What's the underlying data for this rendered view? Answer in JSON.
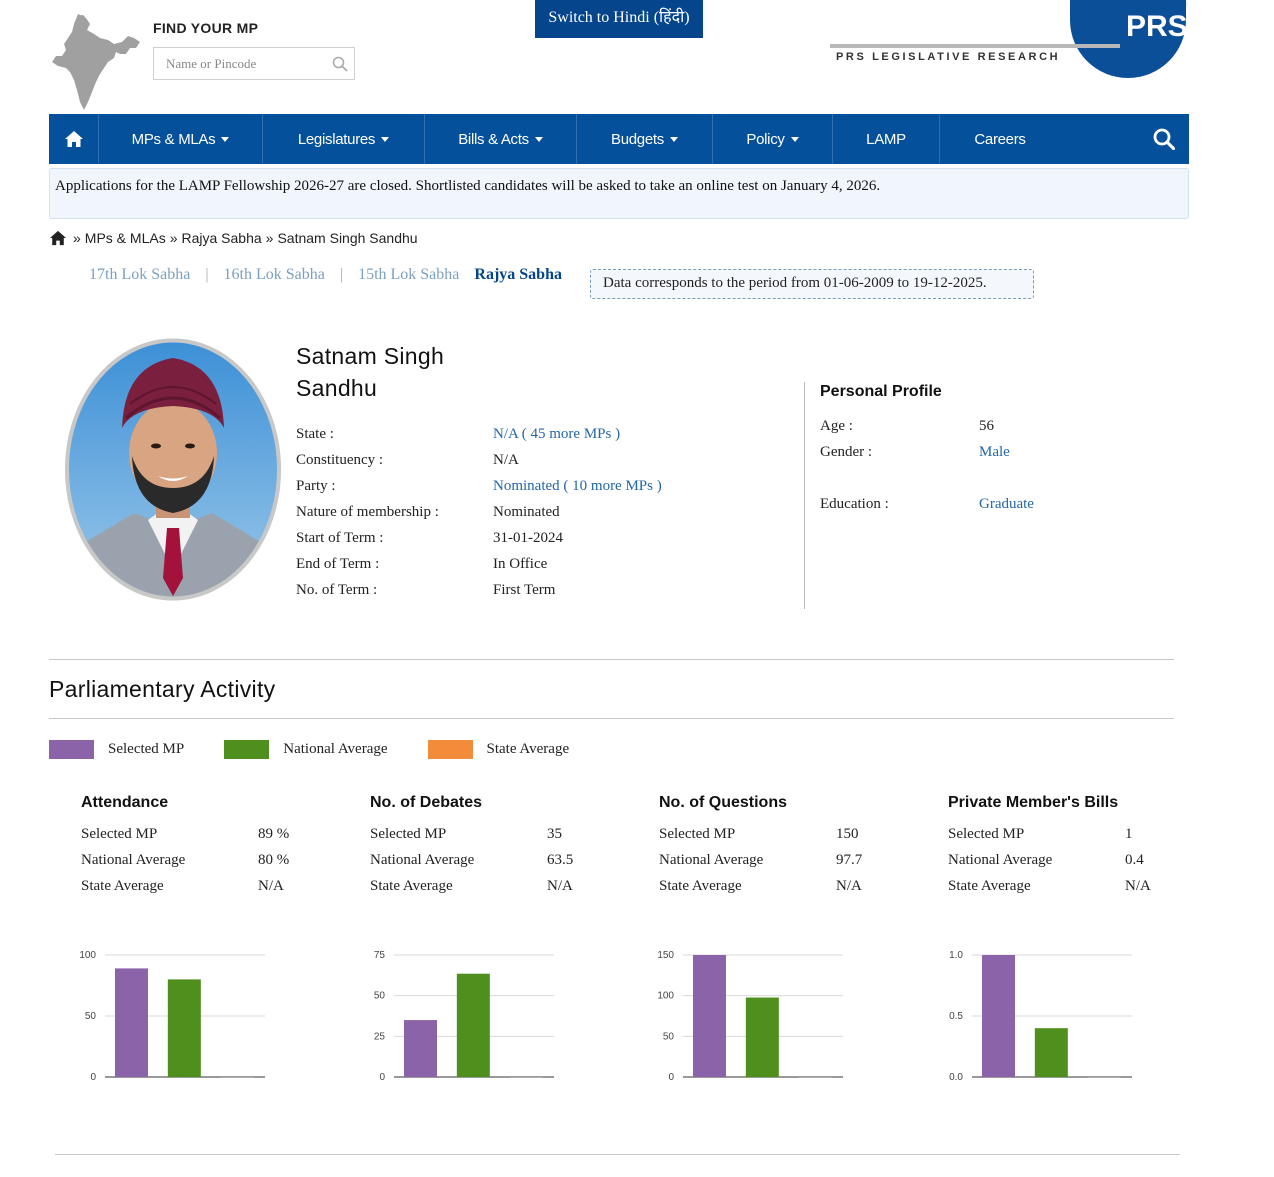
{
  "header": {
    "find_title": "FIND YOUR MP",
    "search_placeholder": "Name or Pincode",
    "hindi_button": "Switch to Hindi (हिंदी)",
    "logo_letters": "PRS",
    "logo_text": "PRS LEGISLATIVE RESEARCH"
  },
  "nav": {
    "items": [
      {
        "label": "MPs & MLAs",
        "dropdown": true
      },
      {
        "label": "Legislatures",
        "dropdown": true
      },
      {
        "label": "Bills & Acts",
        "dropdown": true
      },
      {
        "label": "Budgets",
        "dropdown": true
      },
      {
        "label": "Policy",
        "dropdown": true
      },
      {
        "label": "LAMP",
        "dropdown": false
      },
      {
        "label": "Careers",
        "dropdown": false
      }
    ],
    "color": "#04509a"
  },
  "notice": "Applications for the LAMP Fellowship 2026-27 are closed. Shortlisted candidates will be asked to take an online test on January 4, 2026.",
  "breadcrumb": [
    "MPs & MLAs",
    "Rajya Sabha",
    "Satnam Singh Sandhu"
  ],
  "breadcrumb_sep": "»",
  "sabha_tabs": {
    "items": [
      "17th Lok Sabha",
      "16th Lok Sabha",
      "15th Lok Sabha"
    ],
    "active": "Rajya Sabha",
    "separator": "|"
  },
  "period": "Data corresponds to the period from 01-06-2009 to 19-12-2025.",
  "mp": {
    "name_line1": "Satnam Singh",
    "name_line2": "Sandhu",
    "state_label": "State :",
    "state_value": "N/A ( 45 more MPs )",
    "constituency_label": "Constituency :",
    "constituency_value": "N/A",
    "party_label": "Party :",
    "party_value": "Nominated ( 10 more MPs )",
    "membership_label": "Nature of membership :",
    "membership_value": "Nominated",
    "start_label": "Start of Term :",
    "start_value": "31-01-2024",
    "end_label": "End of Term :",
    "end_value": "In Office",
    "terms_label": "No. of Term :",
    "terms_value": "First Term"
  },
  "personal": {
    "title": "Personal Profile",
    "age_label": "Age :",
    "age_value": "56",
    "gender_label": "Gender :",
    "gender_value": "Male",
    "education_label": "Education :",
    "education_value": "Graduate"
  },
  "activity": {
    "title": "Parliamentary Activity",
    "legend": [
      {
        "label": "Selected MP",
        "color": "#8a63a8"
      },
      {
        "label": "National Average",
        "color": "#4f8f1d"
      },
      {
        "label": "State Average",
        "color": "#f28c3b"
      }
    ],
    "row_labels": [
      "Selected MP",
      "National Average",
      "State Average"
    ]
  },
  "chart_data": [
    {
      "type": "bar",
      "title": "Attendance",
      "categories": [
        "Selected MP",
        "National Average",
        "State Average"
      ],
      "display": [
        "89 %",
        "80 %",
        "N/A"
      ],
      "values": [
        89,
        80,
        0
      ],
      "ylim": [
        0,
        100
      ],
      "yticks": [
        "100",
        "50",
        "0"
      ],
      "ytick_values": [
        100,
        50,
        0
      ]
    },
    {
      "type": "bar",
      "title": "No. of Debates",
      "categories": [
        "Selected MP",
        "National Average",
        "State Average"
      ],
      "display": [
        "35",
        "63.5",
        "N/A"
      ],
      "values": [
        35,
        63.5,
        0
      ],
      "ylim": [
        0,
        75
      ],
      "yticks": [
        "75",
        "50",
        "25",
        "0"
      ],
      "ytick_values": [
        75,
        50,
        25,
        0
      ]
    },
    {
      "type": "bar",
      "title": "No. of Questions",
      "categories": [
        "Selected MP",
        "National Average",
        "State Average"
      ],
      "display": [
        "150",
        "97.7",
        "N/A"
      ],
      "values": [
        150,
        97.7,
        0
      ],
      "ylim": [
        0,
        150
      ],
      "yticks": [
        "150",
        "100",
        "50",
        "0"
      ],
      "ytick_values": [
        150,
        100,
        50,
        0
      ]
    },
    {
      "type": "bar",
      "title": "Private Member's Bills",
      "categories": [
        "Selected MP",
        "National Average",
        "State Average"
      ],
      "display": [
        "1",
        "0.4",
        "N/A"
      ],
      "values": [
        1,
        0.4,
        0
      ],
      "ylim": [
        0,
        1
      ],
      "yticks": [
        "1.0",
        "0.5",
        "0.0"
      ],
      "ytick_values": [
        1,
        0.5,
        0
      ]
    }
  ]
}
